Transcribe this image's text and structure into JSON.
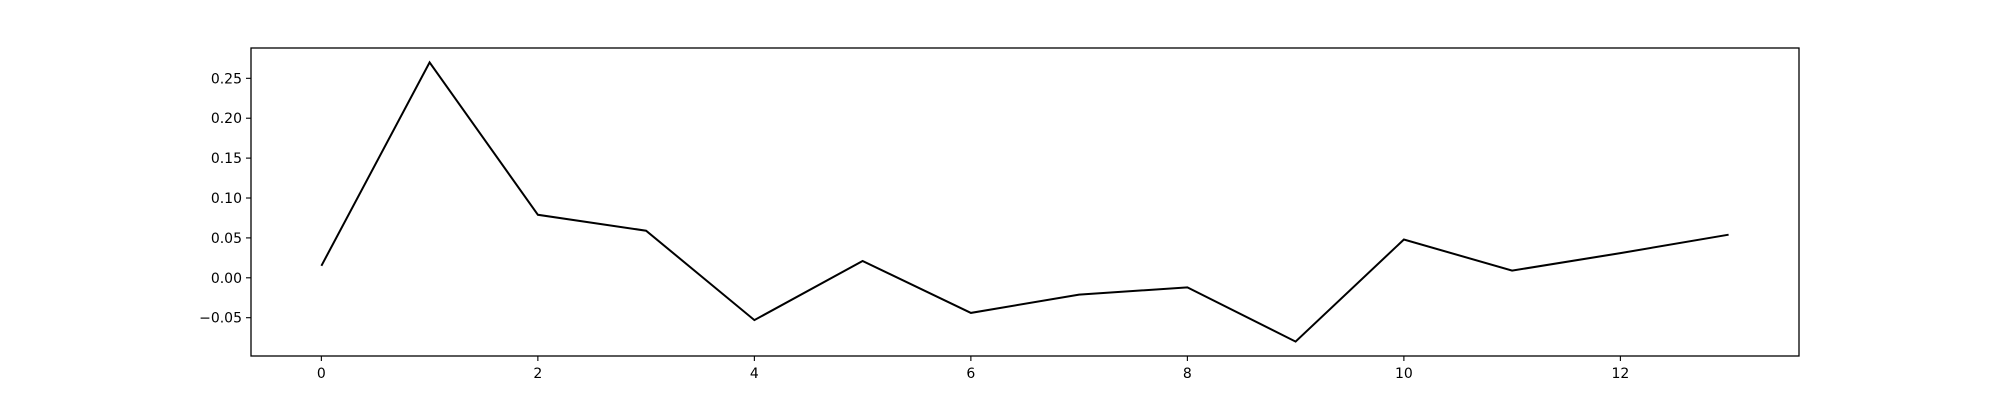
{
  "chart_data": {
    "type": "line",
    "title": "",
    "xlabel": "",
    "ylabel": "",
    "x": [
      0,
      1,
      2,
      3,
      4,
      5,
      6,
      7,
      8,
      9,
      10,
      11,
      12,
      13
    ],
    "series": [
      {
        "color": "#000000",
        "values": [
          0.015,
          0.27,
          0.079,
          0.059,
          -0.053,
          0.021,
          -0.044,
          -0.021,
          -0.012,
          -0.08,
          0.048,
          0.009,
          0.031,
          0.054
        ]
      }
    ],
    "xlim": [
      -0.65,
      13.65
    ],
    "ylim": [
      -0.098,
      0.288
    ],
    "xticks": [
      0,
      2,
      4,
      6,
      8,
      10,
      12
    ],
    "xtick_labels": [
      "0",
      "2",
      "4",
      "6",
      "8",
      "10",
      "12"
    ],
    "yticks": [
      -0.05,
      0.0,
      0.05,
      0.1,
      0.15,
      0.2,
      0.25
    ],
    "ytick_labels": [
      "−0.05",
      "0.00",
      "0.05",
      "0.10",
      "0.15",
      "0.20",
      "0.25"
    ],
    "grid": false,
    "legend": "none"
  }
}
